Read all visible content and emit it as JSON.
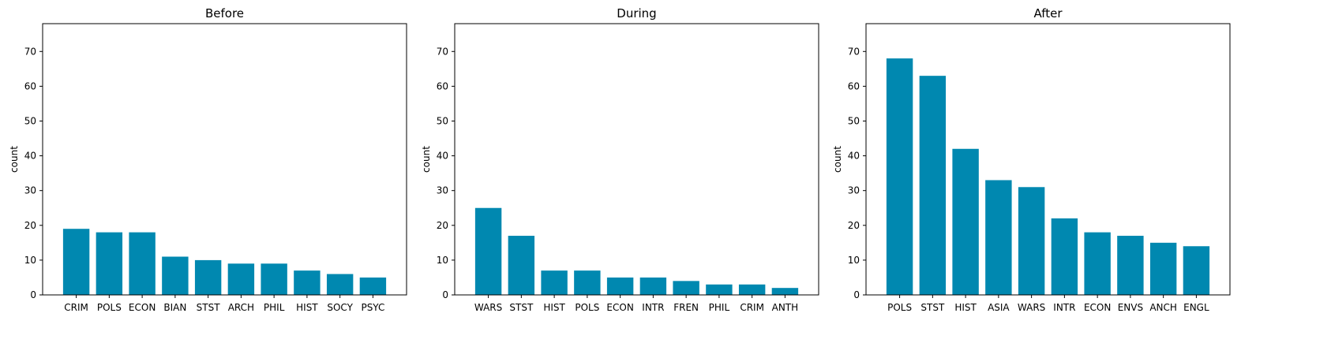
{
  "chart_data": [
    {
      "type": "bar",
      "title": "Before",
      "ylabel": "count",
      "categories": [
        "CRIM",
        "POLS",
        "ECON",
        "BIAN",
        "STST",
        "ARCH",
        "PHIL",
        "HIST",
        "SOCY",
        "PSYC"
      ],
      "values": [
        19,
        18,
        18,
        11,
        10,
        9,
        9,
        7,
        6,
        5
      ],
      "ylim": [
        0,
        78
      ],
      "yticks": [
        0,
        10,
        20,
        30,
        40,
        50,
        60,
        70
      ],
      "color": "#0088b0"
    },
    {
      "type": "bar",
      "title": "During",
      "ylabel": "count",
      "categories": [
        "WARS",
        "STST",
        "HIST",
        "POLS",
        "ECON",
        "INTR",
        "FREN",
        "PHIL",
        "CRIM",
        "ANTH"
      ],
      "values": [
        25,
        17,
        7,
        7,
        5,
        5,
        4,
        3,
        3,
        2
      ],
      "ylim": [
        0,
        78
      ],
      "yticks": [
        0,
        10,
        20,
        30,
        40,
        50,
        60,
        70
      ],
      "color": "#0088b0"
    },
    {
      "type": "bar",
      "title": "After",
      "ylabel": "count",
      "categories": [
        "POLS",
        "STST",
        "HIST",
        "ASIA",
        "WARS",
        "INTR",
        "ECON",
        "ENVS",
        "ANCH",
        "ENGL"
      ],
      "values": [
        68,
        63,
        42,
        33,
        31,
        22,
        18,
        17,
        15,
        14
      ],
      "ylim": [
        0,
        78
      ],
      "yticks": [
        0,
        10,
        20,
        30,
        40,
        50,
        60,
        70
      ],
      "color": "#0088b0"
    }
  ]
}
